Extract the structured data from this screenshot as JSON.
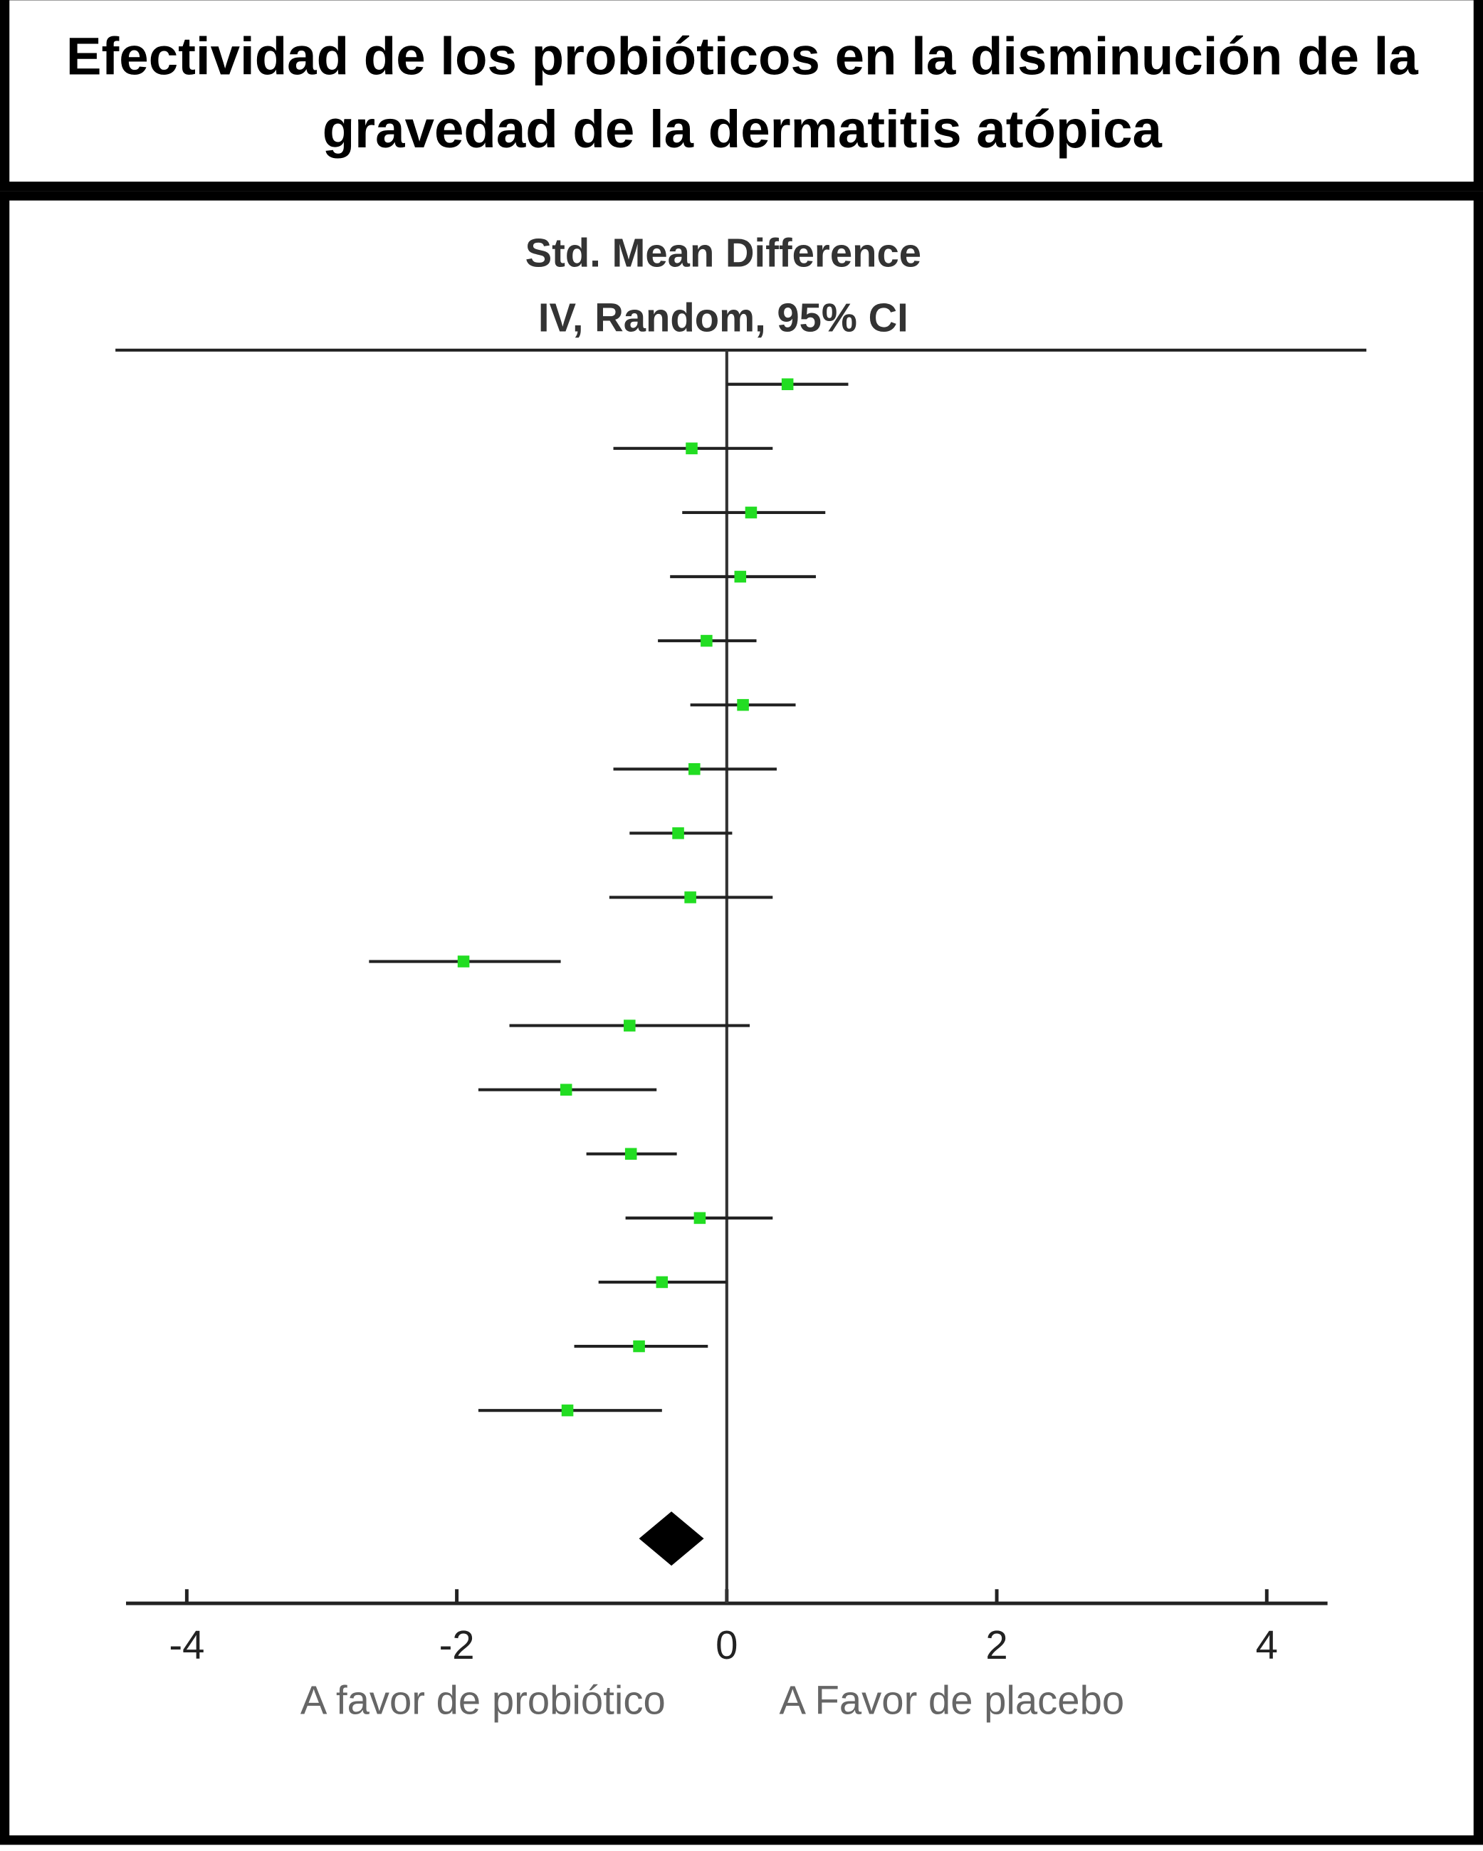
{
  "chart_data": {
    "type": "forest",
    "title": "Efectividad de los probióticos en la disminución de la gravedad de la dermatitis atópica",
    "axis_header": [
      "Std. Mean Difference",
      "IV, Random, 95% CI"
    ],
    "left_label": "A favor de probiótico",
    "right_label": "A Favor de placebo",
    "xlim": [
      -4.45,
      4.45
    ],
    "xticks": [
      -4,
      -2,
      0,
      2,
      4
    ],
    "studies": {
      "color": "#22dd22",
      "line_color": "#222222",
      "values": [
        0.45,
        -0.26,
        0.18,
        0.1,
        -0.15,
        0.12,
        -0.24,
        -0.36,
        -0.27,
        -1.95,
        -0.72,
        -1.19,
        -0.71,
        -0.2,
        -0.48,
        -0.65,
        -1.18
      ],
      "lower": [
        0.0,
        -0.84,
        -0.33,
        -0.42,
        -0.51,
        -0.27,
        -0.84,
        -0.72,
        -0.87,
        -2.65,
        -1.61,
        -1.84,
        -1.04,
        -0.75,
        -0.95,
        -1.13,
        -1.84
      ],
      "upper": [
        0.9,
        0.34,
        0.73,
        0.66,
        0.22,
        0.51,
        0.37,
        0.04,
        0.34,
        -1.23,
        0.17,
        -0.52,
        -0.37,
        0.34,
        0.0,
        -0.14,
        -0.48
      ]
    },
    "pooled": {
      "value": -0.41,
      "lower": -0.65,
      "upper": -0.17,
      "color": "#000000"
    }
  }
}
